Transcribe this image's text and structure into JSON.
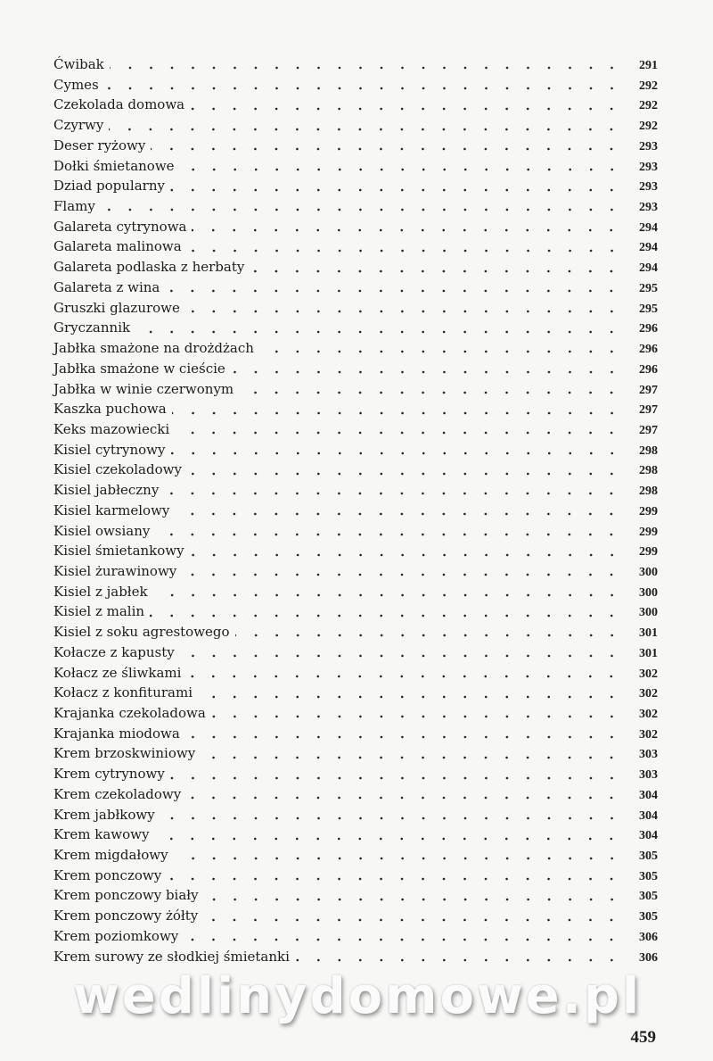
{
  "entries": [
    {
      "title": "Ćwibak",
      "page": "291"
    },
    {
      "title": "Cymes",
      "page": "292"
    },
    {
      "title": "Czekolada domowa",
      "page": "292"
    },
    {
      "title": "Czyrwy",
      "page": "292"
    },
    {
      "title": "Deser ryżowy",
      "page": "293"
    },
    {
      "title": "Dołki śmietanowe",
      "page": "293"
    },
    {
      "title": "Dziad popularny",
      "page": "293"
    },
    {
      "title": "Flamy",
      "page": "293"
    },
    {
      "title": "Galareta cytrynowa",
      "page": "294"
    },
    {
      "title": "Galareta malinowa",
      "page": "294"
    },
    {
      "title": "Galareta podlaska z herbaty",
      "page": "294"
    },
    {
      "title": "Galareta z wina",
      "page": "295"
    },
    {
      "title": "Gruszki glazurowe",
      "page": "295"
    },
    {
      "title": "Gryczannik",
      "page": "296"
    },
    {
      "title": "Jabłka smażone na drożdżach",
      "page": "296"
    },
    {
      "title": "Jabłka smażone w cieście",
      "page": "296"
    },
    {
      "title": "Jabłka w winie czerwonym",
      "page": "297"
    },
    {
      "title": "Kaszka puchowa",
      "page": "297"
    },
    {
      "title": "Keks mazowiecki",
      "page": "297"
    },
    {
      "title": "Kisiel cytrynowy",
      "page": "298"
    },
    {
      "title": "Kisiel czekoladowy",
      "page": "298"
    },
    {
      "title": "Kisiel jabłeczny",
      "page": "298"
    },
    {
      "title": "Kisiel karmelowy",
      "page": "299"
    },
    {
      "title": "Kisiel owsiany",
      "page": "299"
    },
    {
      "title": "Kisiel śmietankowy",
      "page": "299"
    },
    {
      "title": "Kisiel żurawinowy",
      "page": "300"
    },
    {
      "title": "Kisiel z jabłek",
      "page": "300"
    },
    {
      "title": "Kisiel z malin",
      "page": "300"
    },
    {
      "title": "Kisiel z soku agrestowego",
      "page": "301"
    },
    {
      "title": "Kołacze z kapusty",
      "page": "301"
    },
    {
      "title": "Kołacz ze śliwkami",
      "page": "302"
    },
    {
      "title": "Kołacz z konfiturami",
      "page": "302"
    },
    {
      "title": "Krajanka czekoladowa",
      "page": "302"
    },
    {
      "title": "Krajanka miodowa",
      "page": "302"
    },
    {
      "title": "Krem brzoskwiniowy",
      "page": "303"
    },
    {
      "title": "Krem cytrynowy",
      "page": "303"
    },
    {
      "title": "Krem czekoladowy",
      "page": "304"
    },
    {
      "title": "Krem jabłkowy",
      "page": "304"
    },
    {
      "title": "Krem kawowy",
      "page": "304"
    },
    {
      "title": "Krem migdałowy",
      "page": "305"
    },
    {
      "title": "Krem ponczowy",
      "page": "305"
    },
    {
      "title": "Krem ponczowy biały",
      "page": "305"
    },
    {
      "title": "Krem ponczowy żółty",
      "page": "305"
    },
    {
      "title": "Krem poziomkowy",
      "page": "306"
    },
    {
      "title": "Krem surowy ze słodkiej śmietanki",
      "page": "306"
    }
  ],
  "watermark": "wedlinydomowe.pl",
  "page_number": "459"
}
